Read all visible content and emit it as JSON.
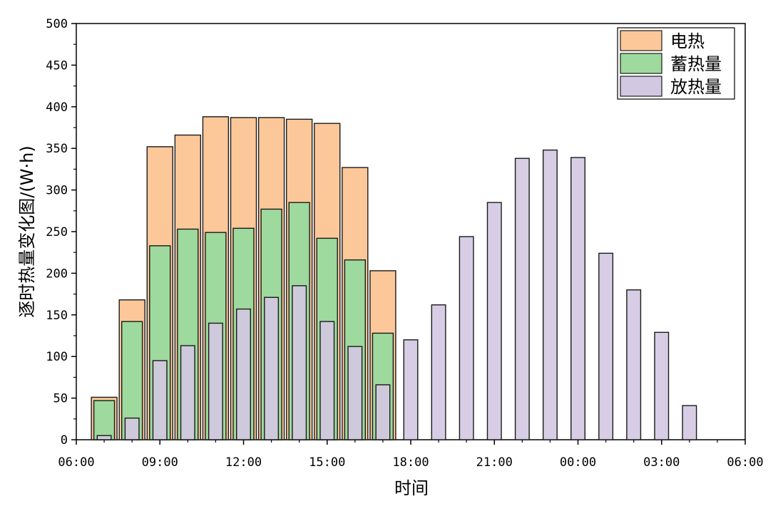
{
  "chart_data": {
    "type": "bar",
    "xlabel": "时间",
    "ylabel": "逐时热量变化图/(W·h)",
    "ylim": [
      0,
      500
    ],
    "y_ticks": [
      0,
      50,
      100,
      150,
      200,
      250,
      300,
      350,
      400,
      450,
      500
    ],
    "xlim_hours": [
      6,
      30
    ],
    "x_tick_labels": [
      "06:00",
      "09:00",
      "12:00",
      "15:00",
      "18:00",
      "21:00",
      "00:00",
      "03:00",
      "06:00"
    ],
    "legend_position": "top-right",
    "series": [
      {
        "name": "电热",
        "color": "#fdc899",
        "x": [
          "07:00",
          "08:00",
          "09:00",
          "10:00",
          "11:00",
          "12:00",
          "13:00",
          "14:00",
          "15:00",
          "16:00",
          "17:00"
        ],
        "values": [
          51,
          168,
          352,
          366,
          388,
          387,
          387,
          385,
          380,
          327,
          203
        ]
      },
      {
        "name": "蓄热量",
        "color": "#9ed99e",
        "x": [
          "07:00",
          "08:00",
          "09:00",
          "10:00",
          "11:00",
          "12:00",
          "13:00",
          "14:00",
          "15:00",
          "16:00",
          "17:00"
        ],
        "values": [
          47,
          142,
          233,
          253,
          249,
          254,
          277,
          285,
          242,
          216,
          128
        ]
      },
      {
        "name": "放热量",
        "color": "#d3c8e1",
        "x": [
          "07:00",
          "08:00",
          "09:00",
          "10:00",
          "11:00",
          "12:00",
          "13:00",
          "14:00",
          "15:00",
          "16:00",
          "17:00",
          "18:00",
          "19:00",
          "20:00",
          "21:00",
          "22:00",
          "23:00",
          "00:00",
          "01:00",
          "02:00",
          "03:00",
          "04:00"
        ],
        "values": [
          5,
          26,
          95,
          113,
          140,
          157,
          171,
          185,
          142,
          112,
          66,
          120,
          162,
          244,
          285,
          338,
          348,
          339,
          224,
          180,
          129,
          41
        ]
      }
    ]
  }
}
